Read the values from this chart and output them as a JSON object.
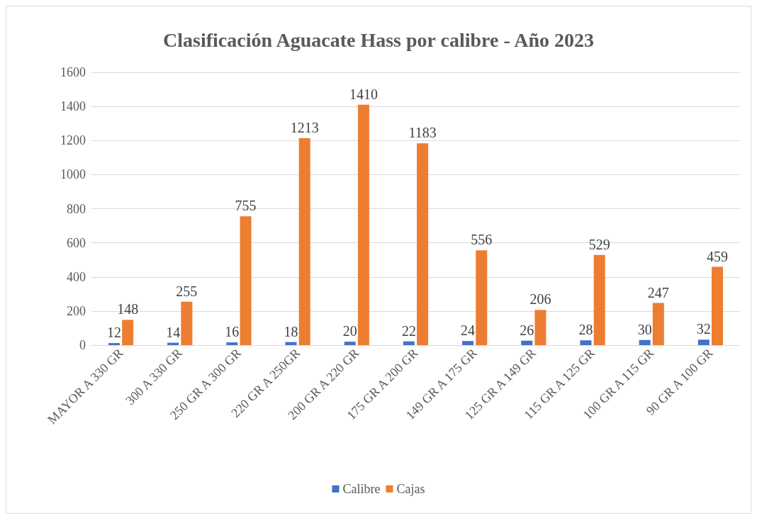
{
  "chart_data": {
    "type": "bar",
    "title": "Clasificación Aguacate Hass por calibre - Año 2023",
    "categories": [
      "MAYOR A 330 GR",
      "300 A 330 GR",
      "250 GR A 300 GR",
      "220 GR A 250GR",
      "200 GR A 220 GR",
      "175 GR A 200 GR",
      "149 GR A 175 GR",
      "125 GR A 149 GR",
      "115 GR A 125 GR",
      "100 GR A 115 GR",
      "90 GR A 100 GR"
    ],
    "series": [
      {
        "name": "Calibre",
        "color": "#4472c4",
        "values": [
          12,
          14,
          16,
          18,
          20,
          22,
          24,
          26,
          28,
          30,
          32
        ]
      },
      {
        "name": "Cajas",
        "color": "#ed7d31",
        "values": [
          148,
          255,
          755,
          1213,
          1410,
          1183,
          556,
          206,
          529,
          247,
          459
        ]
      }
    ],
    "ylim": [
      0,
      1600
    ],
    "yticks": [
      0,
      200,
      400,
      600,
      800,
      1000,
      1200,
      1400,
      1600
    ],
    "grid": "y",
    "legend": "bottom",
    "data_labels": true
  }
}
